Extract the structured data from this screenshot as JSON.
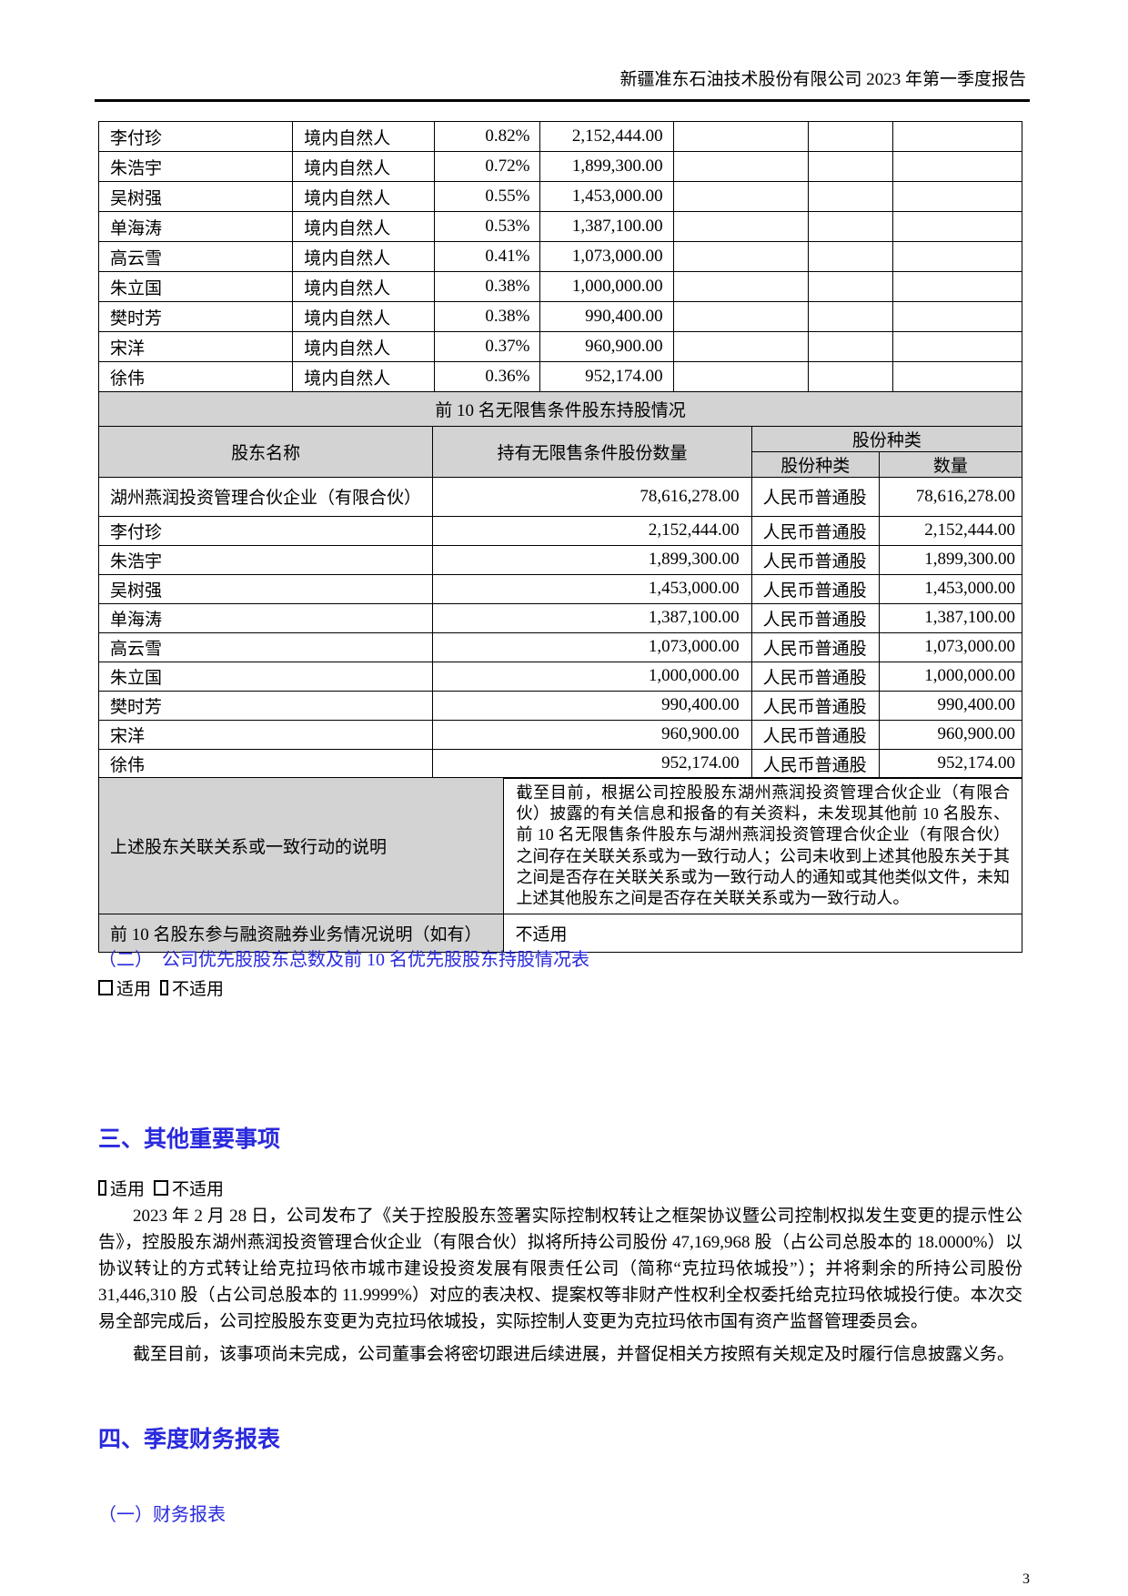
{
  "page": {
    "header_title": "新疆准东石油技术股份有限公司 2023 年第一季度报告",
    "page_number": "3",
    "accent_blue": "#2929dd",
    "table_header_gray": "#d3d3d3"
  },
  "table1": {
    "rows": [
      {
        "name": "李付珍",
        "type": "境内自然人",
        "ratio": "0.82%",
        "shares": "2,152,444.00"
      },
      {
        "name": "朱浩宇",
        "type": "境内自然人",
        "ratio": "0.72%",
        "shares": "1,899,300.00"
      },
      {
        "name": "吴树强",
        "type": "境内自然人",
        "ratio": "0.55%",
        "shares": "1,453,000.00"
      },
      {
        "name": "单海涛",
        "type": "境内自然人",
        "ratio": "0.53%",
        "shares": "1,387,100.00"
      },
      {
        "name": "高云雪",
        "type": "境内自然人",
        "ratio": "0.41%",
        "shares": "1,073,000.00"
      },
      {
        "name": "朱立国",
        "type": "境内自然人",
        "ratio": "0.38%",
        "shares": "1,000,000.00"
      },
      {
        "name": "樊时芳",
        "type": "境内自然人",
        "ratio": "0.38%",
        "shares": "990,400.00"
      },
      {
        "name": "宋洋",
        "type": "境内自然人",
        "ratio": "0.37%",
        "shares": "960,900.00"
      },
      {
        "name": "徐伟",
        "type": "境内自然人",
        "ratio": "0.36%",
        "shares": "952,174.00"
      }
    ]
  },
  "table2": {
    "band_title": "前 10 名无限售条件股东持股情况",
    "header": {
      "shareholder_name": "股东名称",
      "unrestricted_shares": "持有无限售条件股份数量",
      "share_class_group": "股份种类",
      "share_class": "股份种类",
      "quantity": "数量"
    },
    "rows": [
      {
        "name": "湖州燕润投资管理合伙企业（有限合伙）",
        "qty": "78,616,278.00",
        "cls": "人民币普通股",
        "amount": "78,616,278.00"
      },
      {
        "name": "李付珍",
        "qty": "2,152,444.00",
        "cls": "人民币普通股",
        "amount": "2,152,444.00"
      },
      {
        "name": "朱浩宇",
        "qty": "1,899,300.00",
        "cls": "人民币普通股",
        "amount": "1,899,300.00"
      },
      {
        "name": "吴树强",
        "qty": "1,453,000.00",
        "cls": "人民币普通股",
        "amount": "1,453,000.00"
      },
      {
        "name": "单海涛",
        "qty": "1,387,100.00",
        "cls": "人民币普通股",
        "amount": "1,387,100.00"
      },
      {
        "name": "高云雪",
        "qty": "1,073,000.00",
        "cls": "人民币普通股",
        "amount": "1,073,000.00"
      },
      {
        "name": "朱立国",
        "qty": "1,000,000.00",
        "cls": "人民币普通股",
        "amount": "1,000,000.00"
      },
      {
        "name": "樊时芳",
        "qty": "990,400.00",
        "cls": "人民币普通股",
        "amount": "990,400.00"
      },
      {
        "name": "宋洋",
        "qty": "960,900.00",
        "cls": "人民币普通股",
        "amount": "960,900.00"
      },
      {
        "name": "徐伟",
        "qty": "952,174.00",
        "cls": "人民币普通股",
        "amount": "952,174.00"
      }
    ],
    "note_label": "上述股东关联关系或一致行动的说明",
    "note_text": "截至目前，根据公司控股股东湖州燕润投资管理合伙企业（有限合伙）披露的有关信息和报备的有关资料，未发现其他前 10 名股东、前 10 名无限售条件股东与湖州燕润投资管理合伙企业（有限合伙）之间存在关联关系或为一致行动人；公司未收到上述其他股东关于其之间是否存在关联关系或为一致行动人的通知或其他类似文件，未知上述其他股东之间是否存在关联关系或为一致行动人。",
    "margin_label": "前 10 名股东参与融资融券业务情况说明（如有）",
    "margin_value": "不适用"
  },
  "sections": {
    "s2_heading": "（二）　公司优先股股东总数及前 10 名优先股股东持股情况表",
    "applicable": "适用",
    "not_applicable": "不适用",
    "s3_heading": "三、其他重要事项",
    "s3_para1": "2023 年 2 月 28 日，公司发布了《关于控股股东签署实际控制权转让之框架协议暨公司控制权拟发生变更的提示性公告》，控股股东湖州燕润投资管理合伙企业（有限合伙）拟将所持公司股份 47,169,968 股（占公司总股本的 18.0000%）以协议转让的方式转让给克拉玛依市城市建设投资发展有限责任公司（简称“克拉玛依城投”）；并将剩余的所持公司股份 31,446,310 股（占公司总股本的 11.9999%）对应的表决权、提案权等非财产性权利全权委托给克拉玛依城投行使。本次交易全部完成后，公司控股股东变更为克拉玛依城投，实际控制人变更为克拉玛依市国有资产监督管理委员会。",
    "s3_para2": "截至目前，该事项尚未完成，公司董事会将密切跟进后续进展，并督促相关方按照有关规定及时履行信息披露义务。",
    "s4_heading": "四、季度财务报表",
    "s4_sub_heading": "（一）财务报表"
  }
}
